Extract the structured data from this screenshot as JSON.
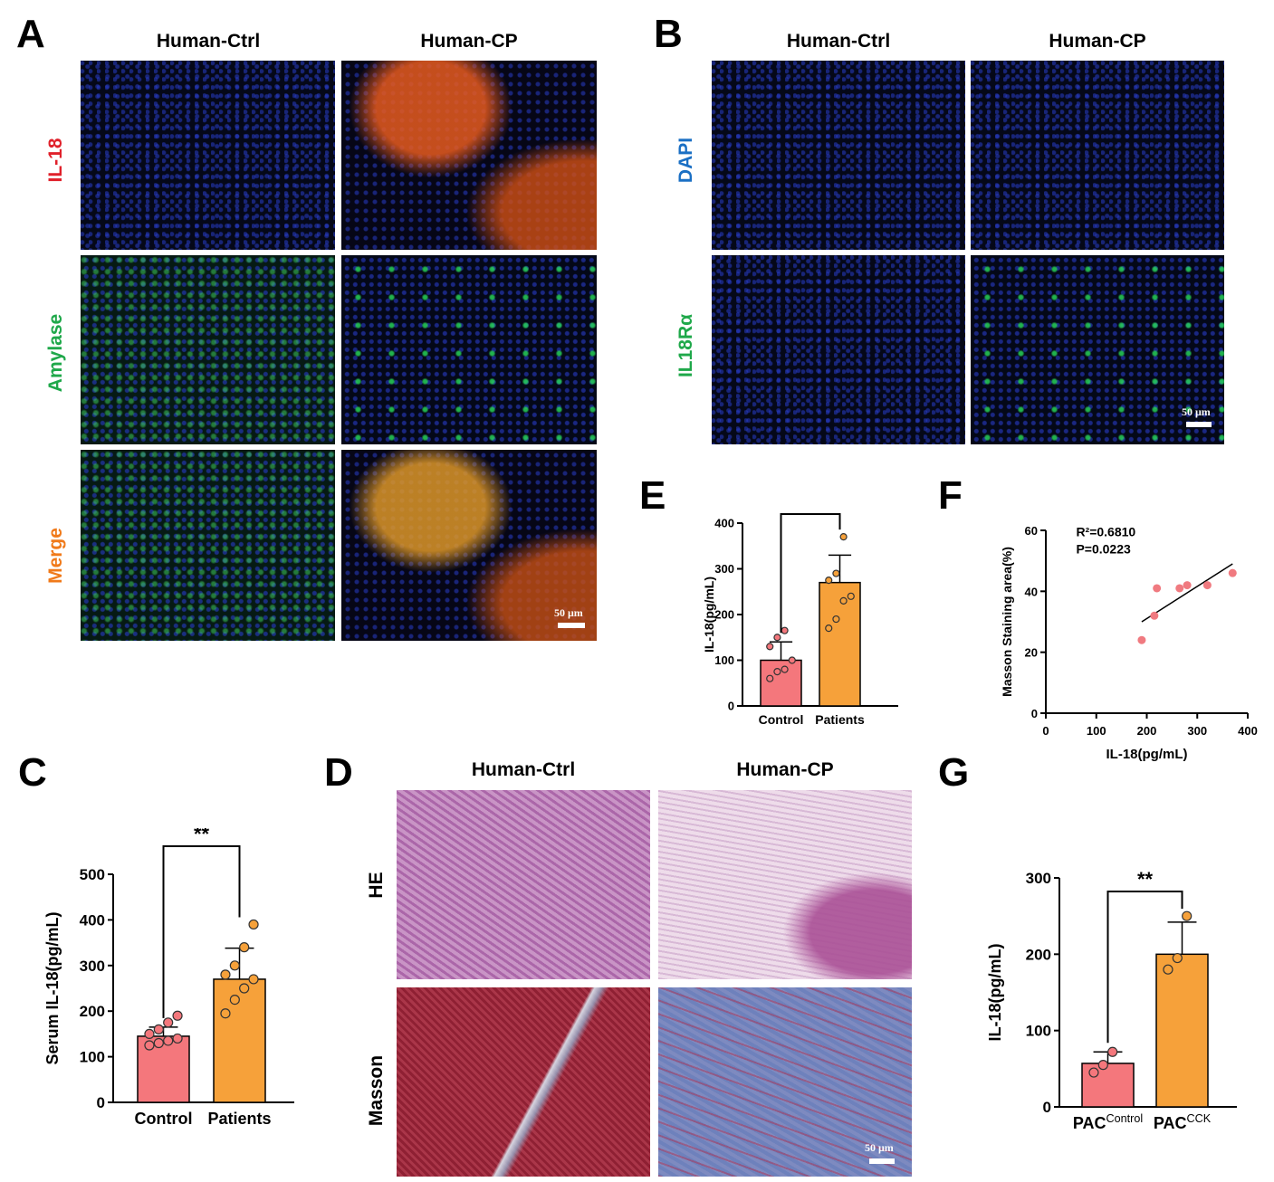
{
  "panels": {
    "A": {
      "label": "A",
      "columns": [
        "Human-Ctrl",
        "Human-CP"
      ],
      "rows": [
        {
          "label": "IL-18",
          "color": "#e0202a"
        },
        {
          "label": "Amylase",
          "color": "#1fa84a"
        },
        {
          "label": "Merge",
          "color": "#f07a1a"
        }
      ],
      "scale": "50 μm"
    },
    "B": {
      "label": "B",
      "columns": [
        "Human-Ctrl",
        "Human-CP"
      ],
      "rows": [
        {
          "label": "DAPI",
          "color": "#1a6fc4"
        },
        {
          "label": "IL18Rα",
          "color": "#1fa84a"
        }
      ],
      "scale": "50 μm"
    },
    "C": {
      "label": "C"
    },
    "D": {
      "label": "D",
      "columns": [
        "Human-Ctrl",
        "Human-CP"
      ],
      "rows": [
        "HE",
        "Masson"
      ],
      "scale": "50 μm"
    },
    "E": {
      "label": "E"
    },
    "F": {
      "label": "F"
    },
    "G": {
      "label": "G"
    }
  },
  "colors": {
    "control": "#f4777c",
    "patients": "#f6a13a",
    "scatter": "#f07a80"
  },
  "chart_data": [
    {
      "id": "E",
      "type": "bar",
      "categories": [
        "Control",
        "Patients"
      ],
      "values": [
        100,
        270
      ],
      "errors": [
        40,
        60
      ],
      "points": [
        [
          60,
          75,
          80,
          100,
          130,
          150,
          165
        ],
        [
          170,
          190,
          230,
          240,
          275,
          290,
          370
        ]
      ],
      "ylabel": "IL-18(pg/mL)",
      "ylim": [
        0,
        400
      ],
      "yticks": [
        0,
        100,
        200,
        300,
        400
      ],
      "significance": "****"
    },
    {
      "id": "F",
      "type": "scatter",
      "x": [
        190,
        215,
        220,
        265,
        280,
        320,
        370
      ],
      "y": [
        24,
        32,
        41,
        41,
        42,
        42,
        46
      ],
      "fit": [
        [
          190,
          30
        ],
        [
          370,
          49
        ]
      ],
      "xlabel": "IL-18(pg/mL)",
      "ylabel": "Masson Staining area(%)",
      "xlim": [
        0,
        400
      ],
      "ylim": [
        0,
        60
      ],
      "xticks": [
        0,
        100,
        200,
        300,
        400
      ],
      "yticks": [
        0,
        20,
        40,
        60
      ],
      "annotations": [
        "R²=0.6810",
        "P=0.0223"
      ]
    },
    {
      "id": "C",
      "type": "bar",
      "categories": [
        "Control",
        "Patients"
      ],
      "values": [
        145,
        270
      ],
      "errors": [
        20,
        68
      ],
      "points": [
        [
          125,
          130,
          135,
          140,
          150,
          160,
          175,
          190
        ],
        [
          195,
          225,
          250,
          270,
          280,
          300,
          340,
          390
        ]
      ],
      "ylabel": "Serum IL-18(pg/mL)",
      "ylim": [
        0,
        500
      ],
      "yticks": [
        0,
        100,
        200,
        300,
        400,
        500
      ],
      "significance": "**"
    },
    {
      "id": "G",
      "type": "bar",
      "categories": [
        "PAC",
        "PAC"
      ],
      "category_superscripts": [
        "Control",
        "CCK"
      ],
      "values": [
        57,
        200
      ],
      "errors": [
        15,
        42
      ],
      "points": [
        [
          45,
          55,
          72
        ],
        [
          180,
          195,
          250
        ]
      ],
      "ylabel": "IL-18(pg/mL)",
      "ylim": [
        0,
        300
      ],
      "yticks": [
        0,
        100,
        200,
        300
      ],
      "significance": "**"
    }
  ]
}
